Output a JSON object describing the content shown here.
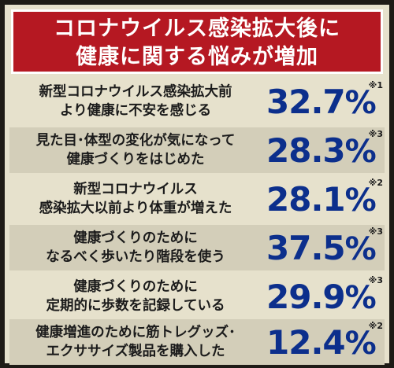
{
  "title": {
    "line1": "コロナウイルス感染拡大後に",
    "line2": "健康に関する悩みが増加"
  },
  "rows": [
    {
      "line1": "新型コロナウイルス感染拡大前",
      "line2": "より健康に不安を感じる",
      "value": "32.7",
      "unit": "%",
      "note": "※1"
    },
    {
      "line1": "見た目･体型の変化が気になって",
      "line2": "健康づくりをはじめた",
      "value": "28.3",
      "unit": "%",
      "note": "※3"
    },
    {
      "line1": "新型コロナウイルス",
      "line2": "感染拡大以前より体重が増えた",
      "value": "28.1",
      "unit": "%",
      "note": "※2"
    },
    {
      "line1": "健康づくりのために",
      "line2": "なるべく歩いたり階段を使う",
      "value": "37.5",
      "unit": "%",
      "note": "※3"
    },
    {
      "line1": "健康づくりのために",
      "line2": "定期的に歩数を記録している",
      "value": "29.9",
      "unit": "%",
      "note": "※3"
    },
    {
      "line1": "健康増進のために筋トレグッズ･",
      "line2": "エクササイズ製品を購入した",
      "value": "12.4",
      "unit": "%",
      "note": "※2"
    }
  ],
  "colors": {
    "banner": "#b51822",
    "value": "#0c2f8c",
    "background": "#e6e1cc"
  }
}
